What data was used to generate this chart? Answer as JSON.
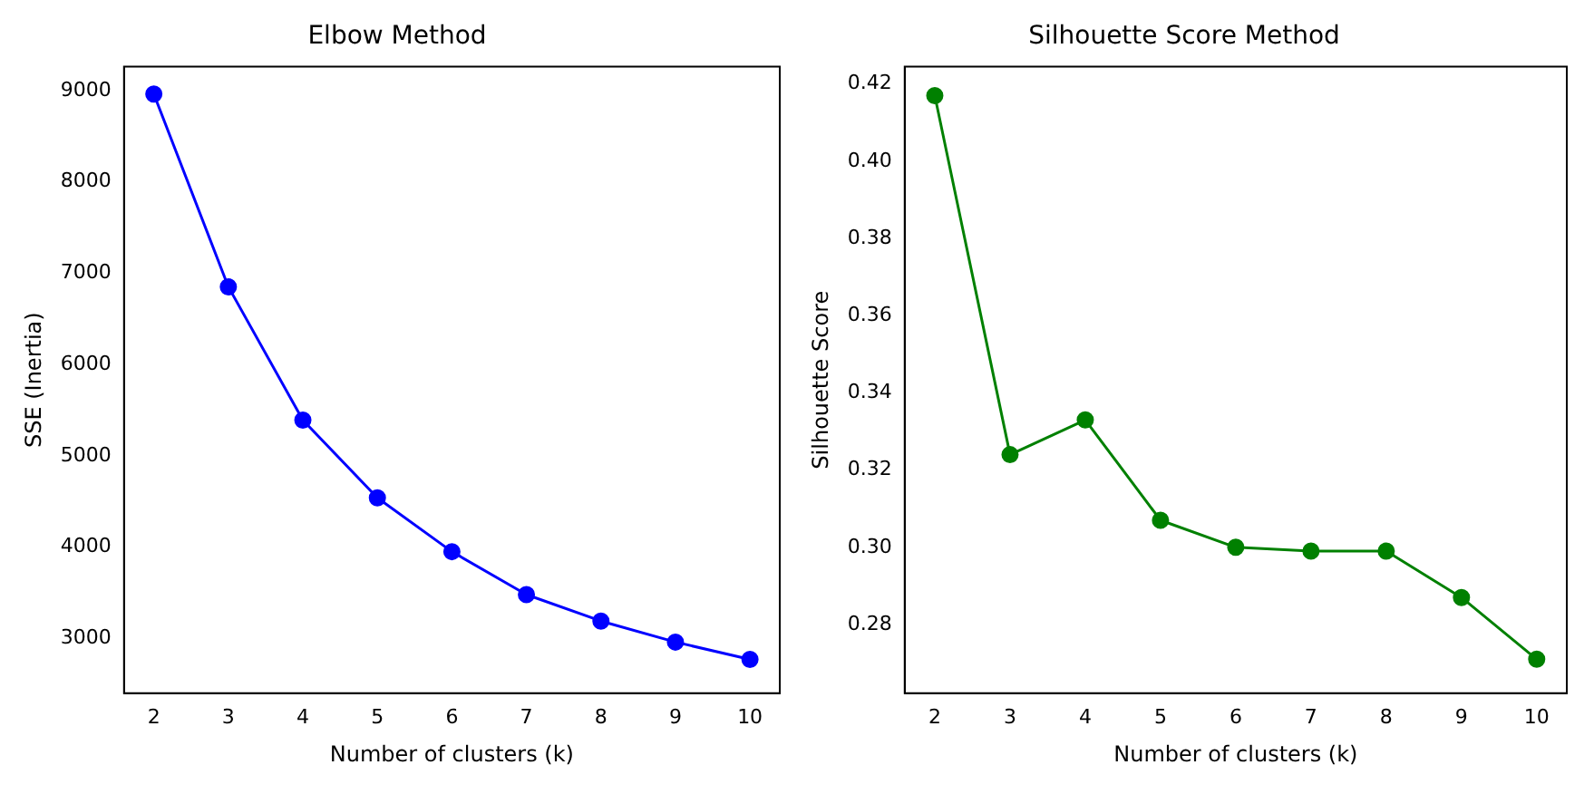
{
  "chart_data": [
    {
      "type": "line",
      "title": "Elbow Method",
      "xlabel": "Number of clusters (k)",
      "ylabel": "SSE (Inertia)",
      "x": [
        2,
        3,
        4,
        5,
        6,
        7,
        8,
        9,
        10
      ],
      "series": [
        {
          "color": "#0000ff",
          "values": [
            8960,
            6850,
            5390,
            4540,
            3950,
            3480,
            3190,
            2960,
            2770
          ]
        }
      ],
      "xlim": [
        1.6,
        10.4
      ],
      "xticks": [
        2,
        3,
        4,
        5,
        6,
        7,
        8,
        9,
        10
      ],
      "ylim": [
        2400,
        9260
      ],
      "yticks": [
        3000,
        4000,
        5000,
        6000,
        7000,
        8000,
        9000
      ],
      "marker": "circle",
      "line_style": "solid",
      "grid": false,
      "legend": false
    },
    {
      "type": "line",
      "title": "Silhouette Score Method",
      "xlabel": "Number of clusters (k)",
      "ylabel": "Silhouette Score",
      "x": [
        2,
        3,
        4,
        5,
        6,
        7,
        8,
        9,
        10
      ],
      "series": [
        {
          "color": "#008000",
          "values": [
            0.417,
            0.324,
            0.333,
            0.307,
            0.3,
            0.299,
            0.299,
            0.287,
            0.271
          ]
        }
      ],
      "xlim": [
        1.6,
        10.4
      ],
      "xticks": [
        2,
        3,
        4,
        5,
        6,
        7,
        8,
        9,
        10
      ],
      "ylim": [
        0.2622,
        0.4245
      ],
      "yticks": [
        0.28,
        {
          "value": 0.3,
          "label": "0.30"
        },
        0.32,
        0.34,
        0.36,
        0.38,
        {
          "value": 0.4,
          "label": "0.40"
        },
        0.42
      ],
      "marker": "circle",
      "line_style": "solid",
      "grid": false,
      "legend": false
    }
  ]
}
